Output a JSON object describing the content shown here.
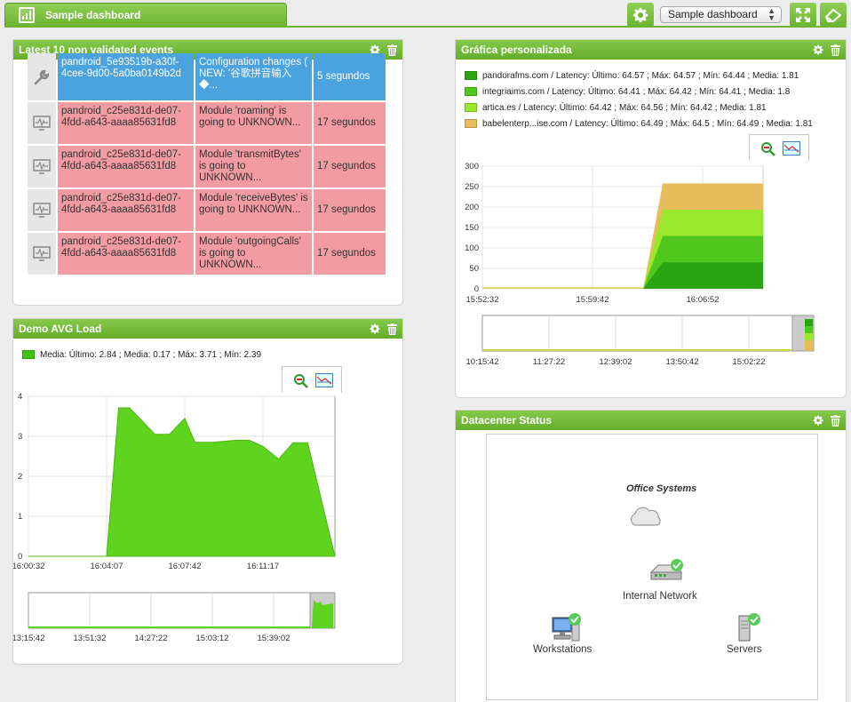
{
  "header": {
    "tab_title": "Sample dashboard",
    "dashboard_select": "Sample dashboard"
  },
  "events_widget": {
    "title": "Latest 10 non validated events",
    "rows": [
      {
        "agent": "pandroid_5e93519b-a30f-4cee-9d00-5a0ba0149b2d",
        "event": "Configuration changes ( NEW: '谷歌拼音输入◆...",
        "time": "5 segundos",
        "status": "blue",
        "icon": "wrench-icon"
      },
      {
        "agent": "pandroid_c25e831d-de07-4fdd-a643-aaaa85631fd8",
        "event": "Module 'roaming' is going to UNKNOWN...",
        "time": "17 segundos",
        "status": "red",
        "icon": "monitor-icon"
      },
      {
        "agent": "pandroid_c25e831d-de07-4fdd-a643-aaaa85631fd8",
        "event": "Module 'transmitBytes' is going to UNKNOWN...",
        "time": "17 segundos",
        "status": "red",
        "icon": "monitor-icon"
      },
      {
        "agent": "pandroid_c25e831d-de07-4fdd-a643-aaaa85631fd8",
        "event": "Module 'receiveBytes' is going to UNKNOWN...",
        "time": "17 segundos",
        "status": "red",
        "icon": "monitor-icon"
      },
      {
        "agent": "pandroid_c25e831d-de07-4fdd-a643-aaaa85631fd8",
        "event": "Module 'outgoingCalls' is going to UNKNOWN...",
        "time": "17 segundos",
        "status": "red",
        "icon": "monitor-icon"
      }
    ]
  },
  "avg_widget": {
    "title": "Demo AVG Load",
    "legend": "Media: Último: 2.84 ; Media: 0.17 ; Máx: 3.71 ; Mín: 2.39"
  },
  "custom_widget": {
    "title": "Gráfica personalizada",
    "legend": [
      {
        "text": "pandorafms.com / Latency: Último: 64.57 ; Máx: 64.57 ; Mín: 64.44 ; Media: 1.81",
        "color": "#2aa511"
      },
      {
        "text": "integriaims.com / Latency: Último: 64.41 ; Máx: 64.42 ; Mín: 64.41 ; Media: 1.8",
        "color": "#4fc71c"
      },
      {
        "text": "artica.es / Latency: Último: 64.42 ; Máx: 64.56 ; Mín: 64.42 ; Media: 1.81",
        "color": "#9ae82e"
      },
      {
        "text": "babelenterp...ise.com / Latency: Último: 64.49 ; Máx: 64.5 ; Mín: 64.49 ; Media: 1.81",
        "color": "#e6bd5a"
      }
    ]
  },
  "datacenter_widget": {
    "title": "Datacenter Status",
    "map_title": "Office Systems",
    "nodes": {
      "network": "Internal Network",
      "workstations": "Workstations",
      "servers": "Servers"
    }
  },
  "chart_data": [
    {
      "type": "area",
      "title": "Demo AVG Load",
      "series": [
        {
          "name": "Media",
          "x": [
            "16:00:32",
            "16:02:00",
            "16:03:20",
            "16:04:07",
            "16:04:40",
            "16:05:10",
            "16:06:20",
            "16:07:00",
            "16:07:42",
            "16:08:10",
            "16:09:00",
            "16:10:00",
            "16:10:40",
            "16:11:17",
            "16:12:00",
            "16:12:40",
            "16:13:20"
          ],
          "values": [
            0,
            0,
            0,
            0,
            3.71,
            3.71,
            3.05,
            3.05,
            3.45,
            2.85,
            2.85,
            2.9,
            2.9,
            2.75,
            2.43,
            2.84,
            2.84
          ]
        }
      ],
      "x_ticks": [
        "16:00:32",
        "16:04:07",
        "16:07:42",
        "16:11:17"
      ],
      "y_ticks": [
        "0",
        "1",
        "2",
        "3",
        "4"
      ],
      "ylim": [
        0,
        4
      ],
      "overview_ticks": [
        "13:15:42",
        "13:51:32",
        "14:27:22",
        "15:03:12",
        "15:39:02"
      ],
      "color": "#5ed41f"
    },
    {
      "type": "area",
      "title": "Gráfica personalizada",
      "stacked": true,
      "categories": [
        "15:52:32",
        "15:59:42",
        "16:03:00",
        "16:06:52",
        "16:10:00"
      ],
      "series": [
        {
          "name": "pandorafms.com / Latency",
          "values": [
            0,
            0,
            0,
            64.57,
            64.57
          ]
        },
        {
          "name": "integriaims.com / Latency",
          "values": [
            0,
            0,
            0,
            64.41,
            64.41
          ]
        },
        {
          "name": "artica.es / Latency",
          "values": [
            0,
            0,
            0,
            64.42,
            64.42
          ]
        },
        {
          "name": "babelenterp...ise.com / Latency",
          "values": [
            0,
            0,
            0,
            64.49,
            64.49
          ]
        }
      ],
      "x_ticks": [
        "15:52:32",
        "15:59:42",
        "16:06:52"
      ],
      "y_ticks": [
        "0",
        "50",
        "100",
        "150",
        "200",
        "250",
        "300"
      ],
      "ylim": [
        0,
        300
      ],
      "overview_ticks": [
        "10:15:42",
        "11:27:22",
        "12:39:02",
        "13:50:42",
        "15:02:22"
      ]
    }
  ]
}
